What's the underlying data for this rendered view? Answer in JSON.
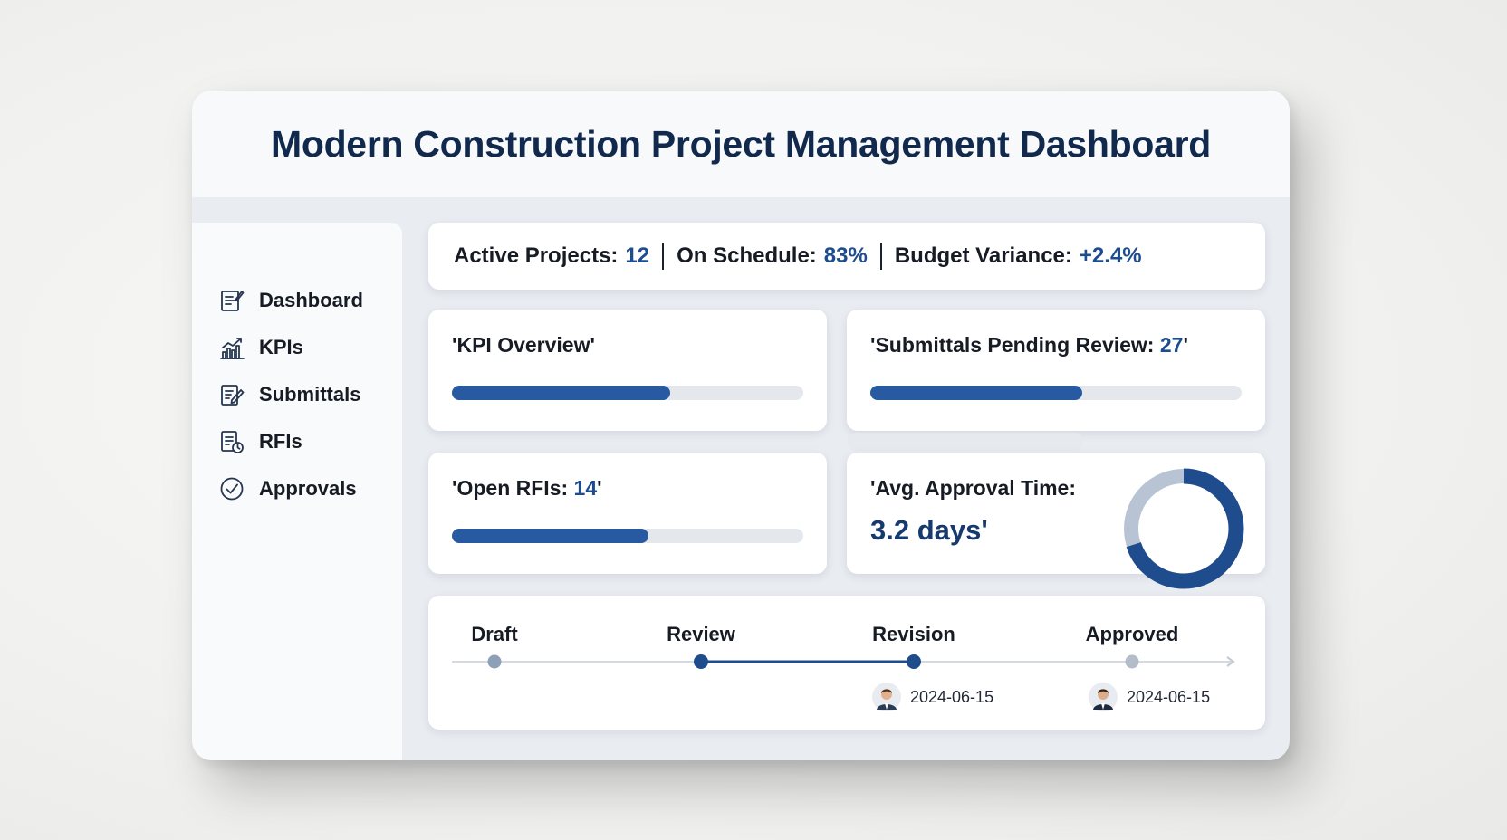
{
  "header": {
    "title": "Modern Construction Project Management Dashboard"
  },
  "sidebar": {
    "items": [
      {
        "label": "Dashboard",
        "icon": "dashboard-icon"
      },
      {
        "label": "KPIs",
        "icon": "chart-icon"
      },
      {
        "label": "Submittals",
        "icon": "edit-document-icon"
      },
      {
        "label": "RFIs",
        "icon": "document-clock-icon"
      },
      {
        "label": "Approvals",
        "icon": "check-circle-icon"
      }
    ]
  },
  "summary": {
    "active_label": "Active Projects:",
    "active_value": "12",
    "schedule_label": "On Schedule:",
    "schedule_value": "83%",
    "budget_label": "Budget Variance:",
    "budget_value": "+2.4%"
  },
  "kpi_overview": {
    "title": "'KPI Overview'",
    "progress": 0.62
  },
  "submittals": {
    "title_prefix": "'Submittals Pending Review: ",
    "value": "27",
    "title_suffix": "'",
    "progress": 0.57
  },
  "rfis": {
    "title_prefix": "'Open RFIs: ",
    "value": "14",
    "title_suffix": "'",
    "progress": 0.56
  },
  "approval_time": {
    "title": "'Avg. Approval Time:",
    "value": "3.2 days'",
    "progress": 0.7
  },
  "timeline": {
    "stages": [
      {
        "label": "Draft",
        "state": "past"
      },
      {
        "label": "Review",
        "state": "active"
      },
      {
        "label": "Revision",
        "state": "active"
      },
      {
        "label": "Approved",
        "state": "pending"
      }
    ],
    "entries": [
      {
        "stage": "Revision",
        "date": "2024-06-15"
      },
      {
        "stage": "Approved",
        "date": "2024-06-15"
      }
    ]
  },
  "colors": {
    "accent": "#275aa0",
    "title": "#11294d",
    "track": "#e4e7ec",
    "donut_base": "#b8c4d3",
    "donut_fill": "#1f4c8c"
  }
}
